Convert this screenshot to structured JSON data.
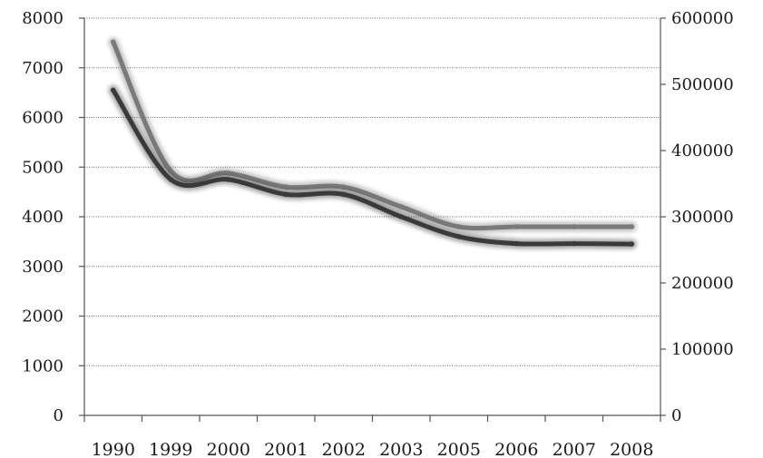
{
  "chart_data": {
    "type": "line",
    "categories": [
      "1990",
      "1999",
      "2000",
      "2001",
      "2002",
      "2003",
      "2005",
      "2006",
      "2007",
      "2008"
    ],
    "series": [
      {
        "axis": "left",
        "color": "#3a3a3a",
        "values": [
          6550,
          4750,
          4750,
          4450,
          4450,
          4000,
          3600,
          3460,
          3460,
          3450
        ]
      },
      {
        "axis": "right",
        "color": "#7a7a7a",
        "values": [
          564000,
          369000,
          366000,
          345000,
          345000,
          315000,
          285000,
          285000,
          285000,
          285000
        ]
      }
    ],
    "ylim_left": [
      0,
      8000
    ],
    "yticks_left": [
      "0",
      "1000",
      "2000",
      "3000",
      "4000",
      "5000",
      "6000",
      "7000",
      "8000"
    ],
    "ylim_right": [
      0,
      600000
    ],
    "yticks_right": [
      "0",
      "100000",
      "200000",
      "300000",
      "400000",
      "500000",
      "600000"
    ],
    "grid": true,
    "legend": "none",
    "line_style": "smooth"
  }
}
